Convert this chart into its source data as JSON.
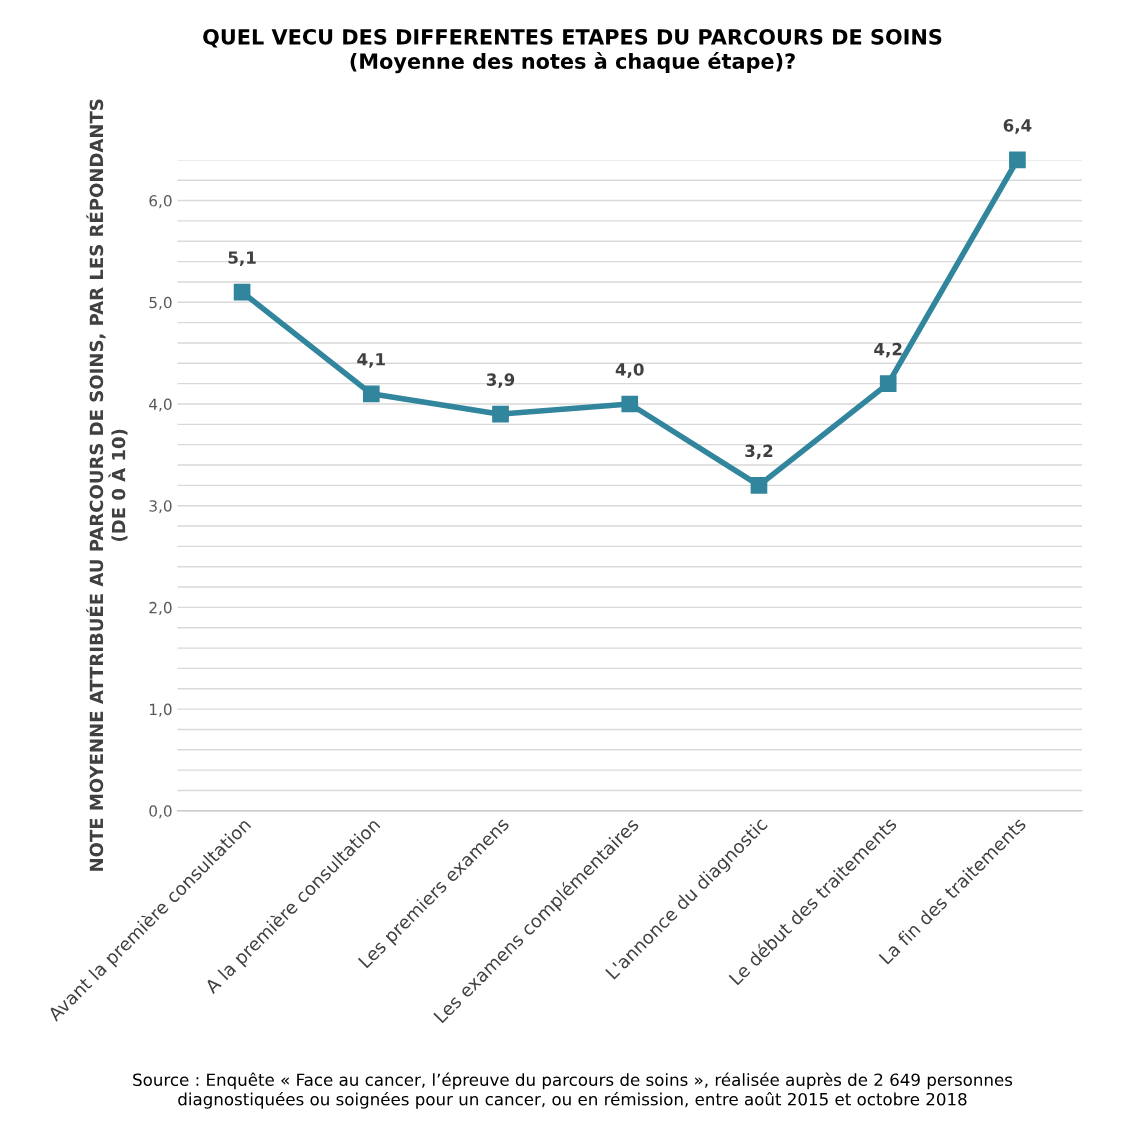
{
  "chart_data": {
    "type": "line",
    "title": "QUEL VECU DES DIFFERENTES ETAPES DU PARCOURS DE SOINS\n(Moyenne des notes à chaque étape)?",
    "ylabel": "NOTE MOYENNE ATTRIBUÉE AU PARCOURS DE SOINS, PAR LES RÉPONDANTS\n(DE 0 À 10)",
    "categories": [
      "Avant la première consultation",
      "A la première consultation",
      "Les premiers examens",
      "Les examens complémentaires",
      "L'annonce du diagnostic",
      "Le début des traitements",
      "La fin des traitements"
    ],
    "series": [
      {
        "color": "#31859c",
        "values": [
          5.1,
          4.1,
          3.9,
          4.0,
          3.2,
          4.2,
          6.4
        ],
        "value_labels": [
          "5,1",
          "4,1",
          "3,9",
          "4,0",
          "3,2",
          "4,2",
          "6,4"
        ]
      }
    ],
    "ylim": [
      0,
      6.4
    ],
    "yticks": [
      {
        "value": 0,
        "label": "0,0"
      },
      {
        "value": 0.2,
        "label": null
      },
      {
        "value": 0.4,
        "label": null
      },
      {
        "value": 0.6,
        "label": null
      },
      {
        "value": 0.8,
        "label": null
      },
      {
        "value": 1,
        "label": "1,0"
      },
      {
        "value": 1.2,
        "label": null
      },
      {
        "value": 1.4,
        "label": null
      },
      {
        "value": 1.6,
        "label": null
      },
      {
        "value": 1.8,
        "label": null
      },
      {
        "value": 2,
        "label": "2,0"
      },
      {
        "value": 2.2,
        "label": null
      },
      {
        "value": 2.4,
        "label": null
      },
      {
        "value": 2.6,
        "label": null
      },
      {
        "value": 2.8,
        "label": null
      },
      {
        "value": 3,
        "label": "3,0"
      },
      {
        "value": 3.2,
        "label": null
      },
      {
        "value": 3.4,
        "label": null
      },
      {
        "value": 3.6,
        "label": null
      },
      {
        "value": 3.8,
        "label": null
      },
      {
        "value": 4,
        "label": "4,0"
      },
      {
        "value": 4.2,
        "label": null
      },
      {
        "value": 4.4,
        "label": null
      },
      {
        "value": 4.6,
        "label": null
      },
      {
        "value": 4.8,
        "label": null
      },
      {
        "value": 5,
        "label": "5,0"
      },
      {
        "value": 5.2,
        "label": null
      },
      {
        "value": 5.4,
        "label": null
      },
      {
        "value": 5.6,
        "label": null
      },
      {
        "value": 5.8,
        "label": null
      },
      {
        "value": 6,
        "label": "6,0"
      },
      {
        "value": 6.2,
        "label": null
      },
      {
        "value": 6.4,
        "label": null
      }
    ],
    "grid": "y",
    "legend": false,
    "marker": "square",
    "line_style": "solid",
    "annotations": [
      "Source : Enquête « Face au cancer, l’épreuve du parcours de soins », réalisée auprès de 2 649 personnes\ndiagnostiquées ou soignées pour un cancer, ou en rémission, entre août 2015 et octobre 2018"
    ]
  }
}
